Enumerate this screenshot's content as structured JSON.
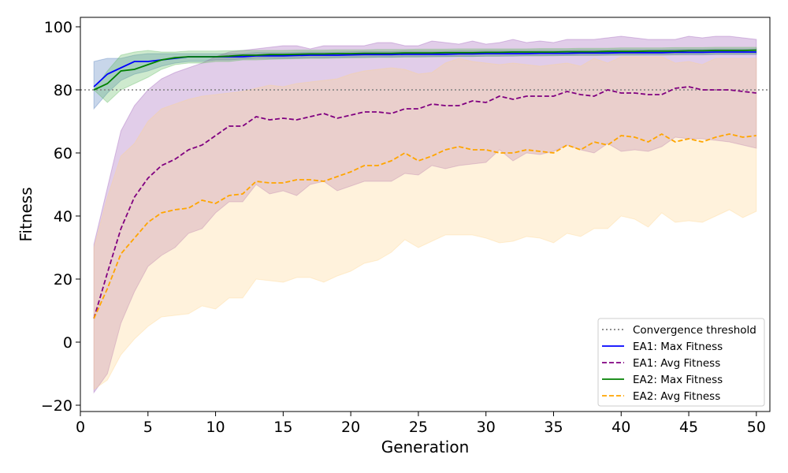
{
  "chart_data": {
    "type": "line",
    "title": "",
    "xlabel": "Generation",
    "ylabel": "Fitness",
    "xlim": [
      0,
      51
    ],
    "ylim": [
      -22,
      103
    ],
    "xticks": [
      0,
      5,
      10,
      15,
      20,
      25,
      30,
      35,
      40,
      45,
      50
    ],
    "yticks": [
      -20,
      0,
      20,
      40,
      60,
      80,
      100
    ],
    "grid": false,
    "legend_position": "lower-right",
    "threshold": {
      "name": "Convergence threshold",
      "value": 80,
      "color": "#808080"
    },
    "x": [
      1,
      2,
      3,
      4,
      5,
      6,
      7,
      8,
      9,
      10,
      11,
      12,
      13,
      14,
      15,
      16,
      17,
      18,
      19,
      20,
      21,
      22,
      23,
      24,
      25,
      26,
      27,
      28,
      29,
      30,
      31,
      32,
      33,
      34,
      35,
      36,
      37,
      38,
      39,
      40,
      41,
      42,
      43,
      44,
      45,
      46,
      47,
      48,
      49,
      50
    ],
    "series": [
      {
        "name": "EA1: Max Fitness",
        "color": "#0000ff",
        "style": "solid",
        "values": [
          81,
          85,
          87,
          89,
          89,
          89.5,
          90,
          90.5,
          90.5,
          90.5,
          90.5,
          90.5,
          90.8,
          90.8,
          90.8,
          90.9,
          91,
          91,
          91,
          91.1,
          91.2,
          91.2,
          91.2,
          91.3,
          91.3,
          91.3,
          91.3,
          91.4,
          91.4,
          91.5,
          91.5,
          91.5,
          91.5,
          91.6,
          91.6,
          91.6,
          91.7,
          91.7,
          91.7,
          91.8,
          91.8,
          91.8,
          91.8,
          91.9,
          91.9,
          91.9,
          92,
          92,
          92,
          92
        ],
        "band_upper": [
          89,
          90,
          90,
          91,
          91.5,
          91.5,
          91.5,
          91.5,
          91.5,
          91.5,
          91.5,
          91.5,
          91.8,
          91.8,
          91.8,
          91.9,
          92,
          92,
          92,
          92.1,
          92.2,
          92.2,
          92.2,
          92.3,
          92.3,
          92.3,
          92.3,
          92.4,
          92.4,
          92.5,
          92.5,
          92.5,
          92.5,
          92.6,
          92.6,
          92.6,
          92.7,
          92.7,
          92.7,
          92.8,
          92.8,
          92.8,
          92.8,
          92.9,
          92.9,
          92.9,
          93,
          93,
          93,
          93
        ],
        "band_lower": [
          74,
          79,
          83,
          85,
          86,
          87.5,
          88.5,
          89,
          89,
          89.5,
          89.5,
          89.8,
          90,
          90,
          90,
          90.1,
          90.2,
          90.2,
          90.3,
          90.3,
          90.4,
          90.4,
          90.4,
          90.5,
          90.5,
          90.5,
          90.6,
          90.6,
          90.6,
          90.7,
          90.7,
          90.7,
          90.8,
          90.8,
          90.8,
          90.9,
          90.9,
          90.9,
          91,
          91,
          91,
          91,
          91,
          91.1,
          91.1,
          91.1,
          91.2,
          91.2,
          91.2,
          91.2
        ],
        "band_color": "#4a78b8"
      },
      {
        "name": "EA1: Avg Fitness",
        "color": "#800080",
        "style": "dashed",
        "values": [
          7.5,
          22,
          36,
          46,
          52,
          56,
          58,
          61,
          62.5,
          65.5,
          68.5,
          68.5,
          71.5,
          70.5,
          71,
          70.5,
          71.5,
          72.5,
          71,
          72,
          73,
          73,
          72.5,
          74,
          74,
          75.5,
          75,
          75,
          76.5,
          76,
          78,
          77,
          78,
          78,
          78,
          79.5,
          78.5,
          78,
          80,
          79,
          79,
          78.5,
          78.5,
          80.5,
          81,
          80,
          80,
          80,
          79.5,
          79
        ],
        "band_upper": [
          31,
          49,
          67,
          75,
          80,
          83.5,
          85.5,
          87,
          88.5,
          90.5,
          92,
          92.5,
          93,
          93.5,
          94,
          94,
          93,
          94,
          94,
          94,
          94,
          95,
          95,
          94,
          94,
          95.5,
          95,
          94.5,
          95.5,
          94.5,
          95,
          96,
          95,
          95.5,
          95,
          96,
          96,
          96,
          96.5,
          97,
          96.5,
          96,
          96,
          96,
          97,
          96.5,
          97,
          97,
          96.5,
          96
        ],
        "band_lower": [
          -16,
          -10,
          6,
          16,
          24,
          27.5,
          30,
          34.5,
          36,
          41,
          44.5,
          44.5,
          50,
          47,
          48,
          46.5,
          50,
          51,
          48,
          49.5,
          51,
          51,
          51,
          53.5,
          53,
          56,
          55,
          56,
          56.5,
          57,
          61,
          57.5,
          60,
          59.5,
          60.5,
          62.5,
          61,
          60,
          63,
          60.5,
          61,
          60.5,
          62,
          65,
          64.5,
          64.5,
          64,
          63.5,
          62.5,
          61.5
        ],
        "band_color": "#9b59b6"
      },
      {
        "name": "EA2: Max Fitness",
        "color": "#008000",
        "style": "solid",
        "values": [
          80,
          82,
          86,
          86.5,
          88,
          89.5,
          90.2,
          90.5,
          90.5,
          90.5,
          90.7,
          91,
          91,
          91.2,
          91.2,
          91.3,
          91.4,
          91.4,
          91.5,
          91.5,
          91.6,
          91.6,
          91.6,
          91.7,
          91.7,
          91.7,
          91.8,
          91.8,
          91.8,
          91.9,
          91.9,
          92,
          92,
          92,
          92,
          92.1,
          92.1,
          92.1,
          92.2,
          92.2,
          92.2,
          92.3,
          92.3,
          92.3,
          92.4,
          92.4,
          92.5,
          92.5,
          92.5,
          92.6
        ],
        "band_upper": [
          80,
          86,
          91,
          92,
          92.5,
          92,
          92,
          92.3,
          92.3,
          92.3,
          92.4,
          92.5,
          92.5,
          92.5,
          92.5,
          92.6,
          92.6,
          92.6,
          92.7,
          92.7,
          92.7,
          92.8,
          92.8,
          92.8,
          92.9,
          92.9,
          92.9,
          93,
          93,
          93,
          93,
          93,
          93,
          93.1,
          93.1,
          93.1,
          93.2,
          93.2,
          93.2,
          93.3,
          93.3,
          93.3,
          93.3,
          93.4,
          93.4,
          93.4,
          93.5,
          93.5,
          93.5,
          93.5
        ],
        "band_lower": [
          80,
          76,
          80,
          82,
          84,
          86.5,
          88,
          88.5,
          88.5,
          89,
          89,
          89.5,
          89.5,
          89.7,
          89.8,
          89.9,
          90,
          90,
          90.1,
          90.2,
          90.2,
          90.3,
          90.3,
          90.4,
          90.4,
          90.5,
          90.5,
          90.6,
          90.6,
          90.7,
          90.7,
          90.8,
          90.8,
          90.8,
          90.9,
          90.9,
          91,
          91,
          91,
          91.1,
          91.1,
          91.2,
          91.2,
          91.2,
          91.3,
          91.3,
          91.4,
          91.4,
          91.4,
          91.5
        ],
        "band_color": "#5cb85c"
      },
      {
        "name": "EA2: Avg Fitness",
        "color": "#ffa500",
        "style": "dashed",
        "values": [
          7.5,
          17,
          28,
          33,
          38,
          41,
          42,
          42.5,
          45,
          44,
          46.5,
          47,
          51,
          50.5,
          50.5,
          51.5,
          51.5,
          51,
          52.5,
          54,
          56,
          56,
          57.5,
          60,
          57.5,
          59,
          61,
          62,
          61,
          61,
          60,
          60,
          61,
          60.5,
          60,
          62.5,
          61,
          63.5,
          62.5,
          65.5,
          65,
          63.5,
          66,
          63.5,
          64.5,
          63.5,
          65,
          66,
          65,
          65.5
        ],
        "band_upper": [
          30,
          46,
          59,
          63,
          70,
          74,
          75.5,
          77,
          78,
          78.5,
          79,
          79.5,
          80.5,
          81.5,
          81,
          82,
          82.5,
          83,
          83.5,
          85,
          86,
          86.5,
          87,
          86.5,
          85,
          85.5,
          88.5,
          90,
          89,
          88.5,
          88,
          88.5,
          88,
          87.5,
          88,
          88.5,
          87.5,
          90,
          88.5,
          90.5,
          90.5,
          90.5,
          90.5,
          88.5,
          89,
          88,
          90,
          90,
          90,
          90
        ],
        "band_lower": [
          -15,
          -12,
          -4,
          1,
          5,
          8,
          8.5,
          9,
          11.5,
          10.5,
          14,
          14,
          20,
          19.5,
          19,
          20.5,
          20.5,
          19,
          21,
          22.5,
          25,
          26,
          28.5,
          32.5,
          30,
          32,
          34,
          34,
          34,
          33,
          31.5,
          32,
          33.5,
          33,
          31.5,
          34.5,
          33.5,
          36,
          36,
          40,
          39,
          36.5,
          41,
          38,
          38.5,
          38,
          40,
          42,
          39.5,
          41.5
        ],
        "band_color": "#ffd48a"
      }
    ],
    "legend": [
      {
        "label": "Convergence threshold",
        "color": "#808080",
        "style": "dotted"
      },
      {
        "label": "EA1: Max Fitness",
        "color": "#0000ff",
        "style": "solid"
      },
      {
        "label": "EA1: Avg Fitness",
        "color": "#800080",
        "style": "dashed"
      },
      {
        "label": "EA2: Max Fitness",
        "color": "#008000",
        "style": "solid"
      },
      {
        "label": "EA2: Avg Fitness",
        "color": "#ffa500",
        "style": "dashed"
      }
    ]
  }
}
